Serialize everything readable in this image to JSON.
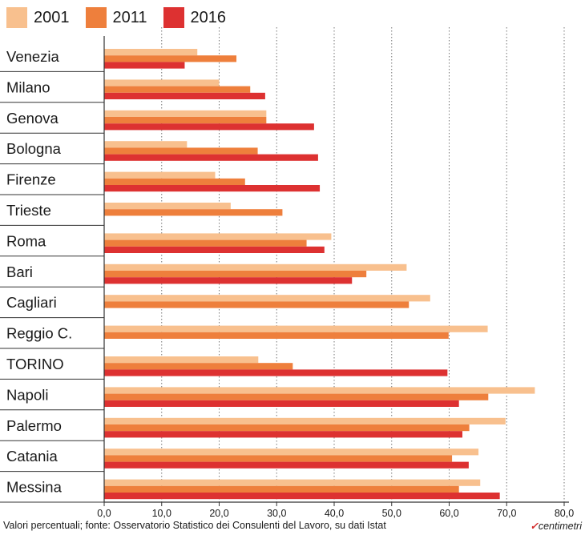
{
  "chart_data": {
    "type": "bar",
    "orientation": "horizontal",
    "categories": [
      "Venezia",
      "Milano",
      "Genova",
      "Bologna",
      "Firenze",
      "Trieste",
      "Roma",
      "Bari",
      "Cagliari",
      "Reggio C.",
      "TORINO",
      "Napoli",
      "Palermo",
      "Catania",
      "Messina"
    ],
    "series": [
      {
        "name": "2001",
        "color": "#f8c08e",
        "values": [
          16.2,
          20.0,
          28.2,
          14.4,
          19.3,
          22.0,
          39.5,
          52.6,
          56.7,
          66.7,
          26.8,
          74.9,
          69.8,
          65.1,
          65.4
        ]
      },
      {
        "name": "2011",
        "color": "#ee7f3c",
        "values": [
          23.0,
          25.4,
          28.2,
          26.7,
          24.5,
          31.0,
          35.2,
          45.6,
          53.0,
          59.9,
          32.8,
          66.8,
          63.5,
          60.5,
          61.7
        ]
      },
      {
        "name": "2016",
        "color": "#dd3131",
        "values": [
          14.0,
          28.0,
          36.5,
          37.2,
          37.5,
          null,
          38.3,
          43.1,
          null,
          null,
          59.7,
          61.7,
          62.3,
          63.4,
          68.8
        ]
      }
    ],
    "xticks": [
      "0,0",
      "10,0",
      "20,0",
      "30,0",
      "40,0",
      "50,0",
      "60,0",
      "70,0",
      "80,0"
    ],
    "xlim": [
      0,
      80
    ],
    "grid": "vertical dotted"
  },
  "footer": {
    "source": "Valori percentuali; fonte: Osservatorio Statistico dei Consulenti del Lavoro, su dati Istat",
    "brand": "centimetri"
  }
}
